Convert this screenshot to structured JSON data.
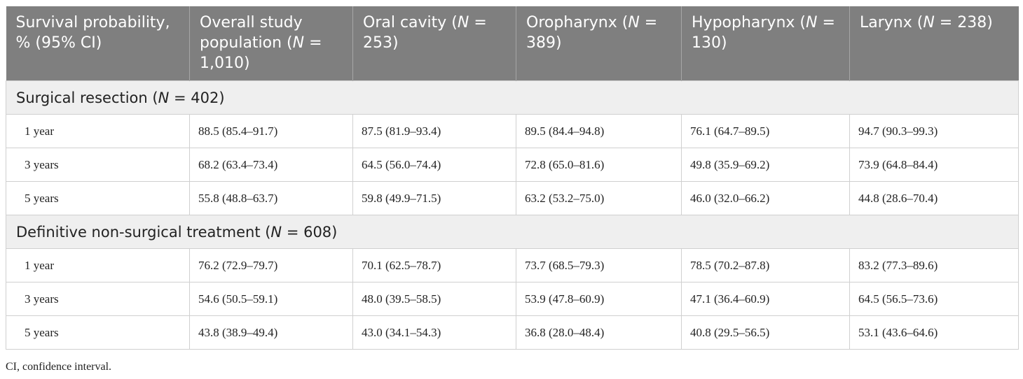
{
  "header": {
    "col0": "Survival probability, % (95% CI)",
    "col1": "Overall study population (N = 1,010)",
    "col2": "Oral cavity (N = 253)",
    "col3": "Oropharynx (N = 389)",
    "col4": "Hypopharynx (N = 130)",
    "col5": "Larynx (N = 238)"
  },
  "sections": [
    {
      "title": "Surgical resection (N = 402)",
      "rows": [
        {
          "label": "1 year",
          "values": [
            "88.5 (85.4–91.7)",
            "87.5 (81.9–93.4)",
            "89.5 (84.4–94.8)",
            "76.1 (64.7–89.5)",
            "94.7 (90.3–99.3)"
          ]
        },
        {
          "label": "3 years",
          "values": [
            "68.2 (63.4–73.4)",
            "64.5 (56.0–74.4)",
            "72.8 (65.0–81.6)",
            "49.8 (35.9–69.2)",
            "73.9 (64.8–84.4)"
          ]
        },
        {
          "label": "5 years",
          "values": [
            "55.8 (48.8–63.7)",
            "59.8 (49.9–71.5)",
            "63.2 (53.2–75.0)",
            "46.0 (32.0–66.2)",
            "44.8 (28.6–70.4)"
          ]
        }
      ]
    },
    {
      "title": "Definitive non-surgical treatment (N = 608)",
      "rows": [
        {
          "label": "1 year",
          "values": [
            "76.2 (72.9–79.7)",
            "70.1 (62.5–78.7)",
            "73.7 (68.5–79.3)",
            "78.5 (70.2–87.8)",
            "83.2 (77.3–89.6)"
          ]
        },
        {
          "label": "3 years",
          "values": [
            "54.6 (50.5–59.1)",
            "48.0 (39.5–58.5)",
            "53.9 (47.8–60.9)",
            "47.1 (36.4–60.9)",
            "64.5 (56.5–73.6)"
          ]
        },
        {
          "label": "5 years",
          "values": [
            "43.8 (38.9–49.4)",
            "43.0 (34.1–54.3)",
            "36.8 (28.0–48.4)",
            "40.8 (29.5–56.5)",
            "53.1 (43.6–64.6)"
          ]
        }
      ]
    }
  ],
  "footnote": "CI, confidence interval."
}
